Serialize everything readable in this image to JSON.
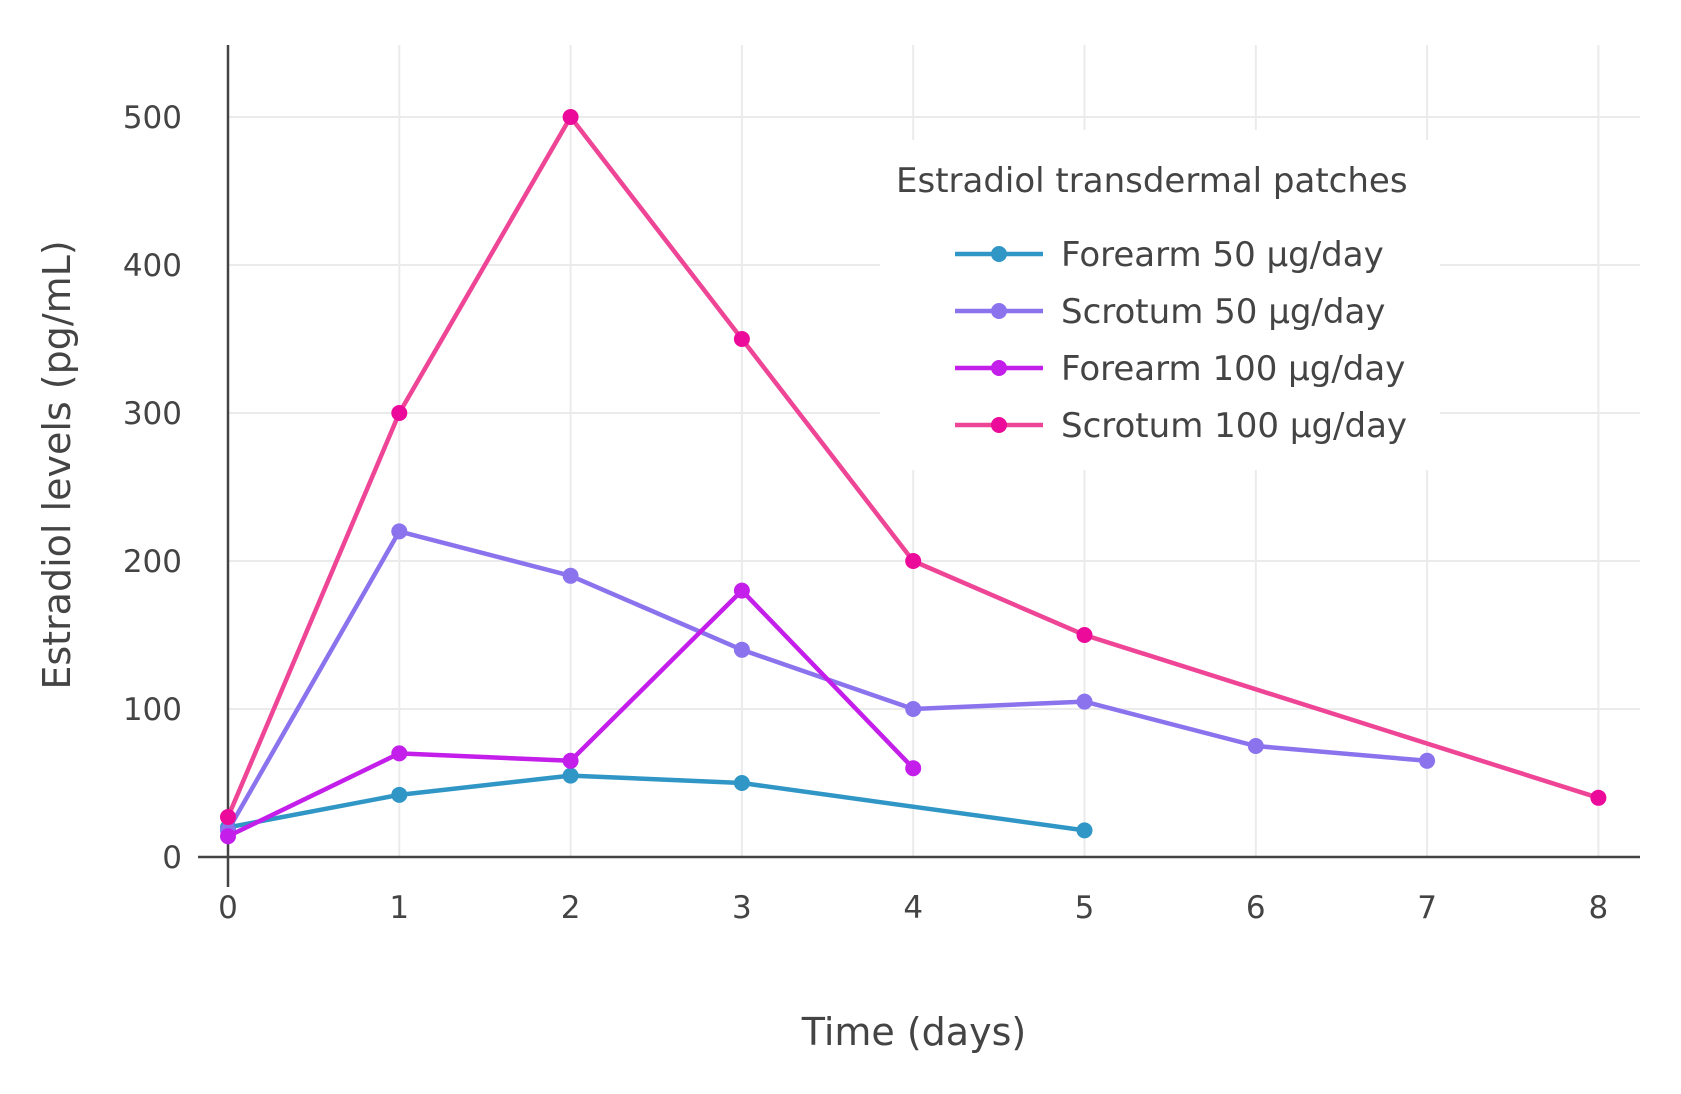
{
  "chart_data": {
    "type": "line",
    "title": "",
    "xlabel": "Time (days)",
    "ylabel": "Estradiol levels (pg/mL)",
    "xlim": [
      0,
      8.25
    ],
    "ylim": [
      0,
      550
    ],
    "xticks": [
      "0",
      "1",
      "2",
      "3",
      "4",
      "5",
      "6",
      "7",
      "8"
    ],
    "yticks": [
      "0",
      "100",
      "200",
      "300",
      "400",
      "500"
    ],
    "grid": true,
    "legend": {
      "title": "Estradiol transdermal patches",
      "placement": "top-right"
    },
    "series": [
      {
        "name": "Forearm 50 μg/day",
        "color": "#3096c6",
        "x": [
          0,
          1,
          2,
          3,
          5
        ],
        "y": [
          20,
          42,
          55,
          50,
          18
        ]
      },
      {
        "name": "Scrotum 50 μg/day",
        "color": "#8b73ee",
        "x": [
          0,
          1,
          2,
          3,
          4,
          5,
          6,
          7
        ],
        "y": [
          18,
          220,
          190,
          140,
          100,
          105,
          75,
          65
        ]
      },
      {
        "name": "Forearm 100 μg/day",
        "color": "#c41eea",
        "x": [
          0,
          1,
          2,
          3,
          4
        ],
        "y": [
          14,
          70,
          65,
          180,
          60
        ]
      },
      {
        "name": "Scrotum 100 μg/day",
        "color": "#ec0a9b",
        "line_color": "#ee4596",
        "x": [
          0,
          1,
          2,
          3,
          4,
          5,
          8
        ],
        "y": [
          27,
          300,
          500,
          350,
          200,
          150,
          40
        ]
      }
    ]
  }
}
